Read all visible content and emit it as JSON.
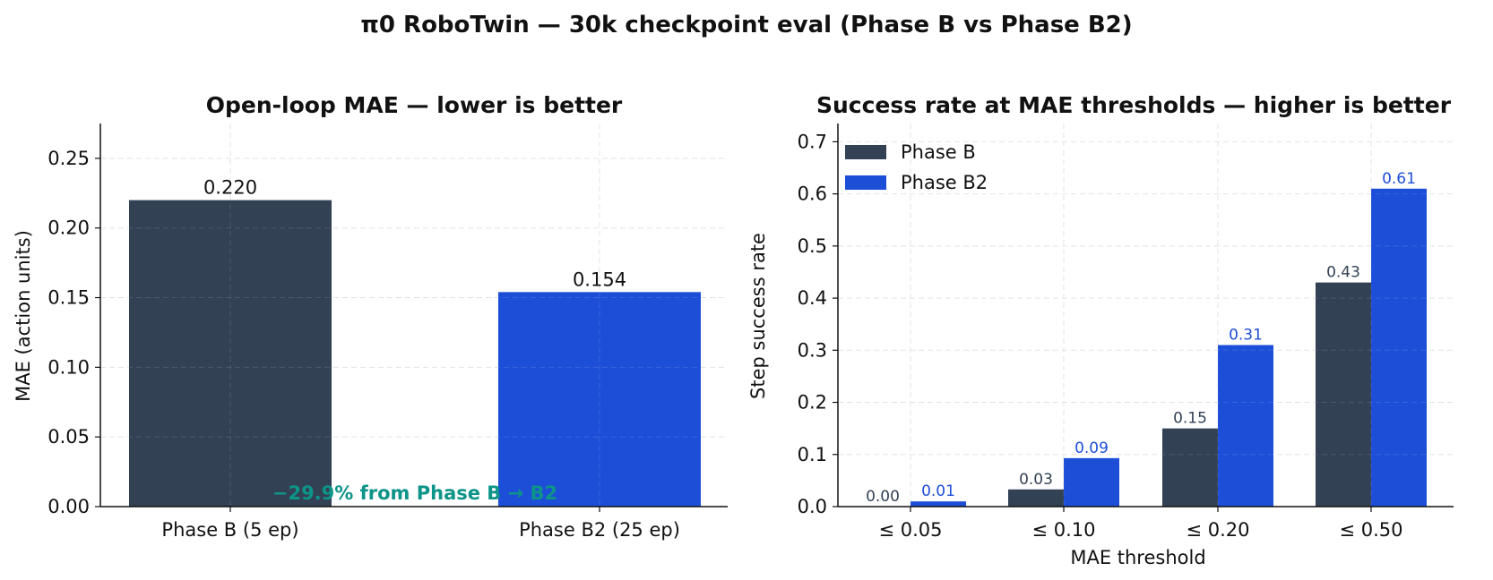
{
  "figure": {
    "title": "π0 RoboTwin — 30k checkpoint eval (Phase B vs Phase B2)"
  },
  "chart_data": [
    {
      "type": "bar",
      "title": "Open-loop MAE — lower is better",
      "xlabel": "",
      "ylabel": "MAE (action units)",
      "categories": [
        "Phase B (5 ep)",
        "Phase B2 (25 ep)"
      ],
      "values": [
        0.22,
        0.154
      ],
      "value_labels": [
        "0.220",
        "0.154"
      ],
      "ylim": [
        0,
        0.275
      ],
      "yticks": [
        0,
        0.05,
        0.1,
        0.15,
        0.2,
        0.25
      ],
      "ytick_labels": [
        "0.00",
        "0.05",
        "0.10",
        "0.15",
        "0.20",
        "0.25"
      ],
      "grid": true,
      "annotation": "−29.9% from Phase B → B2",
      "colors": [
        "#334155",
        "#1d4ed8"
      ],
      "annotation_color": "#0d9488"
    },
    {
      "type": "bar",
      "title": "Success rate at MAE thresholds — higher is better",
      "xlabel": "MAE threshold",
      "ylabel": "Step success rate",
      "categories": [
        "≤ 0.05",
        "≤ 0.10",
        "≤ 0.20",
        "≤ 0.50"
      ],
      "series": [
        {
          "name": "Phase B",
          "values": [
            0.0,
            0.033,
            0.15,
            0.43
          ],
          "labels": [
            "0.00",
            "0.03",
            "0.15",
            "0.43"
          ],
          "color": "#334155"
        },
        {
          "name": "Phase B2",
          "values": [
            0.01,
            0.093,
            0.31,
            0.61
          ],
          "labels": [
            "0.01",
            "0.09",
            "0.31",
            "0.61"
          ],
          "color": "#1d4ed8"
        }
      ],
      "ylim": [
        0,
        0.735
      ],
      "yticks": [
        0,
        0.1,
        0.2,
        0.3,
        0.4,
        0.5,
        0.6,
        0.7
      ],
      "ytick_labels": [
        "0.0",
        "0.1",
        "0.2",
        "0.3",
        "0.4",
        "0.5",
        "0.6",
        "0.7"
      ],
      "grid": true,
      "legend_position": "top-left"
    }
  ]
}
